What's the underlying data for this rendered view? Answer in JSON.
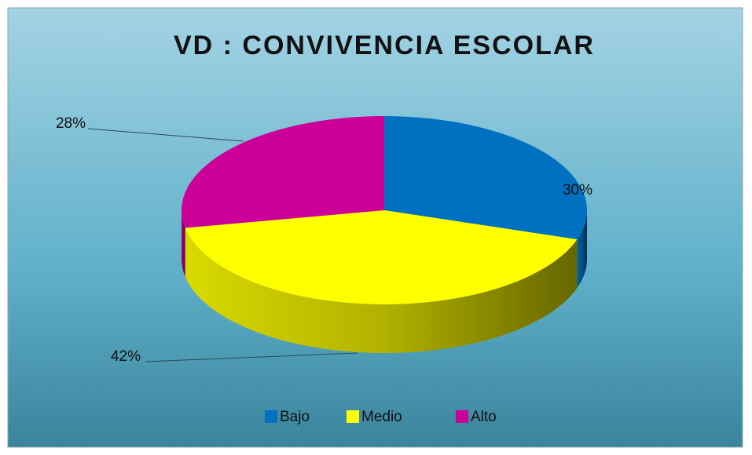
{
  "chart_data": {
    "type": "pie",
    "title": "VD : CONVIVENCIA ESCOLAR",
    "categories": [
      "Bajo",
      "Medio",
      "Alto"
    ],
    "values": [
      30,
      42,
      28
    ],
    "value_labels": [
      "30%",
      "42%",
      "28%"
    ],
    "colors": [
      "#0070c0",
      "#ffff00",
      "#cc0099"
    ],
    "legend": "bottom"
  }
}
